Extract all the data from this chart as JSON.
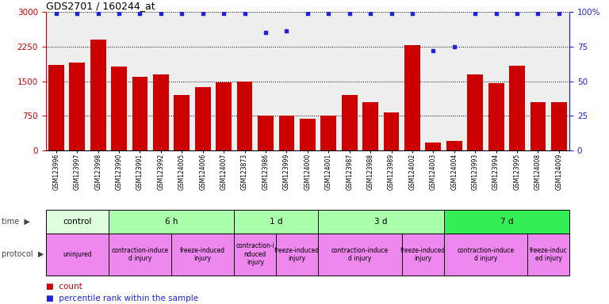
{
  "title": "GDS2701 / 160244_at",
  "samples": [
    "GSM123996",
    "GSM123997",
    "GSM123998",
    "GSM123990",
    "GSM123991",
    "GSM123992",
    "GSM124005",
    "GSM124006",
    "GSM124007",
    "GSM123873",
    "GSM123986",
    "GSM123999",
    "GSM124000",
    "GSM124001",
    "GSM123987",
    "GSM123988",
    "GSM123989",
    "GSM124002",
    "GSM124003",
    "GSM124004",
    "GSM123993",
    "GSM123994",
    "GSM123995",
    "GSM124008",
    "GSM124009"
  ],
  "counts": [
    1850,
    1900,
    2400,
    1820,
    1600,
    1650,
    1200,
    1380,
    1470,
    1500,
    760,
    760,
    680,
    750,
    1200,
    1050,
    830,
    2280,
    175,
    210,
    1650,
    1450,
    1830,
    1050,
    1050
  ],
  "percentile": [
    99,
    99,
    99,
    99,
    99,
    99,
    99,
    99,
    99,
    99,
    85,
    86,
    99,
    99,
    99,
    99,
    99,
    99,
    72,
    75,
    99,
    99,
    99,
    99,
    99
  ],
  "ylim_left": [
    0,
    3000
  ],
  "ylim_right": [
    0,
    100
  ],
  "yticks_left": [
    0,
    750,
    1500,
    2250,
    3000
  ],
  "yticks_right": [
    0,
    25,
    50,
    75,
    100
  ],
  "bar_color": "#cc0000",
  "dot_color": "#2222dd",
  "bg_color": "#ffffff",
  "time_groups": [
    {
      "label": "control",
      "start": 0,
      "end": 3,
      "color": "#ddffdd"
    },
    {
      "label": "6 h",
      "start": 3,
      "end": 9,
      "color": "#aaffaa"
    },
    {
      "label": "1 d",
      "start": 9,
      "end": 13,
      "color": "#aaffaa"
    },
    {
      "label": "3 d",
      "start": 13,
      "end": 19,
      "color": "#aaffaa"
    },
    {
      "label": "7 d",
      "start": 19,
      "end": 25,
      "color": "#33ee55"
    }
  ],
  "protocol_groups": [
    {
      "label": "uninjured",
      "start": 0,
      "end": 3,
      "color": "#ee88ee"
    },
    {
      "label": "contraction-induce\nd injury",
      "start": 3,
      "end": 6,
      "color": "#ee88ee"
    },
    {
      "label": "freeze-induced\ninjury",
      "start": 6,
      "end": 9,
      "color": "#ee88ee"
    },
    {
      "label": "contraction-i\nnduced\ninjury",
      "start": 9,
      "end": 11,
      "color": "#ee88ee"
    },
    {
      "label": "freeze-induced\ninjury",
      "start": 11,
      "end": 13,
      "color": "#ee88ee"
    },
    {
      "label": "contraction-induce\nd injury",
      "start": 13,
      "end": 17,
      "color": "#ee88ee"
    },
    {
      "label": "freeze-induced\ninjury",
      "start": 17,
      "end": 19,
      "color": "#ee88ee"
    },
    {
      "label": "contraction-induce\nd injury",
      "start": 19,
      "end": 23,
      "color": "#ee88ee"
    },
    {
      "label": "freeze-induc\ned injury",
      "start": 23,
      "end": 25,
      "color": "#ee88ee"
    }
  ]
}
